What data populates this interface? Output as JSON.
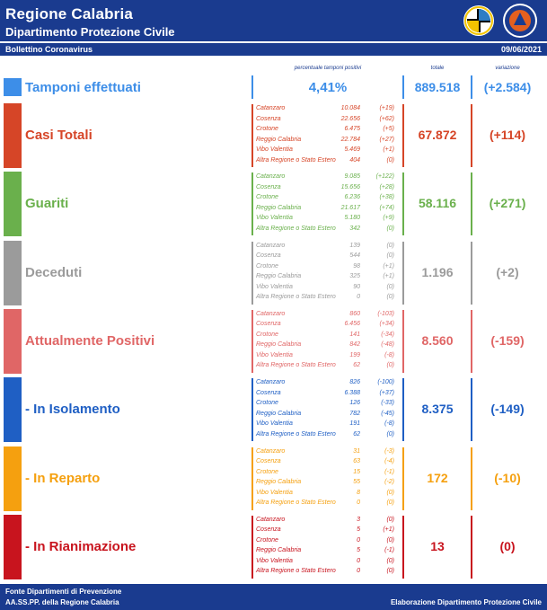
{
  "header": {
    "title": "Regione Calabria",
    "subtitle": "Dipartimento Protezione Civile",
    "bulletin": "Bollettino Coronavirus",
    "date": "09/06/2021"
  },
  "columns": {
    "pct_label": "percentuale tamponi positivi",
    "total_label": "totale",
    "var_label": "variazione"
  },
  "tamponi": {
    "label": "Tamponi effettuati",
    "pct": "4,41%",
    "total": "889.518",
    "var": "(+2.584)",
    "color": "#3d8ee8"
  },
  "sections": [
    {
      "label": "Casi Totali",
      "color": "#d64527",
      "total": "67.872",
      "var": "(+114)",
      "rows": [
        [
          "Catanzaro",
          "10.084",
          "(+19)"
        ],
        [
          "Cosenza",
          "22.656",
          "(+62)"
        ],
        [
          "Crotone",
          "6.475",
          "(+5)"
        ],
        [
          "Reggio Calabria",
          "22.784",
          "(+27)"
        ],
        [
          "Vibo Valentia",
          "5.469",
          "(+1)"
        ],
        [
          "Altra Regione o Stato Estero",
          "404",
          "(0)"
        ]
      ]
    },
    {
      "label": "Guariti",
      "color": "#6ab04c",
      "total": "58.116",
      "var": "(+271)",
      "rows": [
        [
          "Catanzaro",
          "9.085",
          "(+122)"
        ],
        [
          "Cosenza",
          "15.656",
          "(+28)"
        ],
        [
          "Crotone",
          "6.236",
          "(+38)"
        ],
        [
          "Reggio Calabria",
          "21.617",
          "(+74)"
        ],
        [
          "Vibo Valentia",
          "5.180",
          "(+9)"
        ],
        [
          "Altra Regione o Stato Estero",
          "342",
          "(0)"
        ]
      ]
    },
    {
      "label": "Deceduti",
      "color": "#9b9b9b",
      "total": "1.196",
      "var": "(+2)",
      "rows": [
        [
          "Catanzaro",
          "139",
          "(0)"
        ],
        [
          "Cosenza",
          "544",
          "(0)"
        ],
        [
          "Crotone",
          "98",
          "(+1)"
        ],
        [
          "Reggio Calabria",
          "325",
          "(+1)"
        ],
        [
          "Vibo Valentia",
          "90",
          "(0)"
        ],
        [
          "Altra Regione o Stato Estero",
          "0",
          "(0)"
        ]
      ]
    },
    {
      "label": "Attualmente Positivi",
      "color": "#e06666",
      "total": "8.560",
      "var": "(-159)",
      "rows": [
        [
          "Catanzaro",
          "860",
          "(-103)"
        ],
        [
          "Cosenza",
          "6.456",
          "(+34)"
        ],
        [
          "Crotone",
          "141",
          "(-34)"
        ],
        [
          "Reggio Calabria",
          "842",
          "(-48)"
        ],
        [
          "Vibo Valentia",
          "199",
          "(-8)"
        ],
        [
          "Altra Regione o Stato Estero",
          "62",
          "(0)"
        ]
      ]
    },
    {
      "label": " - In Isolamento",
      "color": "#1f5fc4",
      "total": "8.375",
      "var": "(-149)",
      "rows": [
        [
          "Catanzaro",
          "826",
          "(-100)"
        ],
        [
          "Cosenza",
          "6.388",
          "(+37)"
        ],
        [
          "Crotone",
          "126",
          "(-33)"
        ],
        [
          "Reggio Calabria",
          "782",
          "(-45)"
        ],
        [
          "Vibo Valentia",
          "191",
          "(-8)"
        ],
        [
          "Altra Regione o Stato Estero",
          "62",
          "(0)"
        ]
      ]
    },
    {
      "label": " - In Reparto",
      "color": "#f5a00f",
      "total": "172",
      "var": "(-10)",
      "rows": [
        [
          "Catanzaro",
          "31",
          "(-3)"
        ],
        [
          "Cosenza",
          "63",
          "(-4)"
        ],
        [
          "Crotone",
          "15",
          "(-1)"
        ],
        [
          "Reggio Calabria",
          "55",
          "(-2)"
        ],
        [
          "Vibo Valentia",
          "8",
          "(0)"
        ],
        [
          "Altra Regione o Stato Estero",
          "0",
          "(0)"
        ]
      ]
    },
    {
      "label": " - In Rianimazione",
      "color": "#c8141e",
      "total": "13",
      "var": "(0)",
      "rows": [
        [
          "Catanzaro",
          "3",
          "(0)"
        ],
        [
          "Cosenza",
          "5",
          "(+1)"
        ],
        [
          "Crotone",
          "0",
          "(0)"
        ],
        [
          "Reggio Calabria",
          "5",
          "(-1)"
        ],
        [
          "Vibo Valentia",
          "0",
          "(0)"
        ],
        [
          "Altra Regione o Stato Estero",
          "0",
          "(0)"
        ]
      ]
    }
  ],
  "footer": {
    "line1": "Fonte Dipartimenti di Prevenzione",
    "line2": "AA.SS.PP.  della Regione Calabria",
    "right": "Elaborazione Dipartimento Protezione Civile"
  }
}
